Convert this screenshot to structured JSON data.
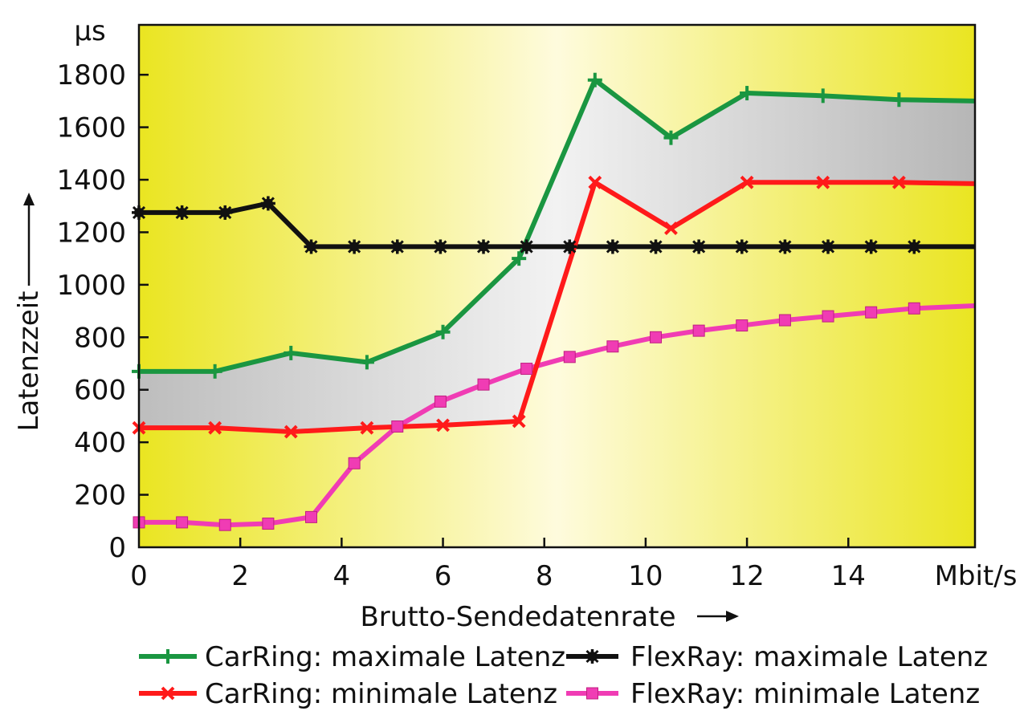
{
  "chart_data": {
    "type": "line",
    "title": "",
    "xlabel": "Brutto-Sendedatenrate",
    "ylabel": "Latenzzeit",
    "x_unit": "Mbit/s",
    "y_unit": "µs",
    "xlim": [
      0,
      16.5
    ],
    "ylim": [
      0,
      1990
    ],
    "x_ticks": [
      0,
      2,
      4,
      6,
      8,
      10,
      12,
      14
    ],
    "y_ticks": [
      0,
      200,
      400,
      600,
      800,
      1000,
      1200,
      1400,
      1600,
      1800
    ],
    "grid": false,
    "band_between": [
      "CarRing: maximale Latenz",
      "CarRing: minimale Latenz"
    ],
    "series": [
      {
        "name": "CarRing: maximale Latenz",
        "color": "#1a9641",
        "marker": "plus",
        "x": [
          0,
          1.5,
          3,
          4.5,
          6,
          7.5,
          9,
          10.5,
          12,
          13.5,
          15,
          16.5
        ],
        "y": [
          670,
          670,
          740,
          705,
          820,
          1100,
          1780,
          1560,
          1730,
          1720,
          1705,
          1700
        ]
      },
      {
        "name": "CarRing: minimale Latenz",
        "color": "#ff1a1a",
        "marker": "x",
        "x": [
          0,
          1.5,
          3,
          4.5,
          6,
          7.5,
          9,
          10.5,
          12,
          13.5,
          15,
          16.5
        ],
        "y": [
          455,
          455,
          440,
          455,
          465,
          480,
          1390,
          1215,
          1390,
          1390,
          1390,
          1385
        ]
      },
      {
        "name": "FlexRay: maximale Latenz",
        "color": "#111111",
        "marker": "star",
        "x": [
          0,
          0.85,
          1.7,
          2.55,
          3.4,
          4.25,
          5.1,
          5.95,
          6.8,
          7.65,
          8.5,
          9.35,
          10.2,
          11.05,
          11.9,
          12.75,
          13.6,
          14.45,
          15.3,
          16.5
        ],
        "y": [
          1275,
          1275,
          1275,
          1310,
          1145,
          1145,
          1145,
          1145,
          1145,
          1145,
          1145,
          1145,
          1145,
          1145,
          1145,
          1145,
          1145,
          1145,
          1145,
          1145
        ]
      },
      {
        "name": "FlexRay: minimale Latenz",
        "color": "#f03cb4",
        "marker": "square",
        "x": [
          0,
          0.85,
          1.7,
          2.55,
          3.4,
          4.25,
          5.1,
          5.95,
          6.8,
          7.65,
          8.5,
          9.35,
          10.2,
          11.05,
          11.9,
          12.75,
          13.6,
          14.45,
          15.3,
          16.5
        ],
        "y": [
          95,
          95,
          85,
          90,
          115,
          320,
          460,
          555,
          620,
          680,
          725,
          765,
          800,
          825,
          845,
          865,
          880,
          895,
          910,
          920
        ]
      }
    ]
  }
}
